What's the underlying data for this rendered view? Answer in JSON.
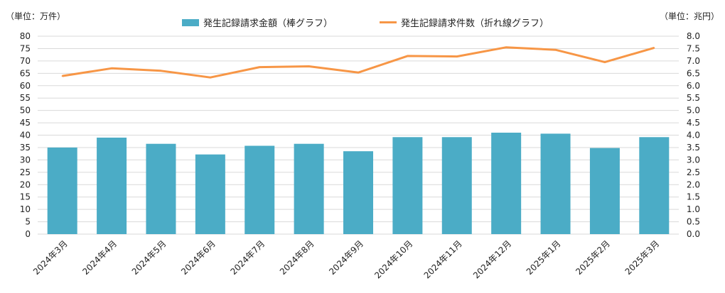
{
  "chart_data": {
    "type": "bar",
    "title": "",
    "y_unit_left": "（単位：万件）",
    "y_unit_right": "（単位：兆円）",
    "categories": [
      "2024年3月",
      "2024年4月",
      "2024年5月",
      "2024年6月",
      "2024年7月",
      "2024年8月",
      "2024年9月",
      "2024年10月",
      "2024年11月",
      "2024年12月",
      "2025年1月",
      "2025年2月",
      "2025年3月"
    ],
    "series": [
      {
        "name": "発生記録請求金額（棒グラフ）",
        "type": "bar",
        "axis": "right",
        "color": "#4BACC6",
        "values": [
          3.5,
          3.9,
          3.65,
          3.22,
          3.57,
          3.65,
          3.35,
          3.92,
          3.92,
          4.1,
          4.06,
          3.48,
          3.92
        ]
      },
      {
        "name": "発生記録請求件数（折れ線グラフ）",
        "type": "line",
        "axis": "left",
        "color": "#F79646",
        "values": [
          63.9,
          67.0,
          66.0,
          63.3,
          67.5,
          67.8,
          65.3,
          72.0,
          71.8,
          75.5,
          74.5,
          69.5,
          75.3
        ]
      }
    ],
    "y_left_ticks": [
      "0",
      "5",
      "10",
      "15",
      "20",
      "25",
      "30",
      "35",
      "40",
      "45",
      "50",
      "55",
      "60",
      "65",
      "70",
      "75",
      "80"
    ],
    "y_right_ticks": [
      "0.0",
      "0.5",
      "1.0",
      "1.5",
      "2.0",
      "2.5",
      "3.0",
      "3.5",
      "4.0",
      "4.5",
      "5.0",
      "5.5",
      "6.0",
      "6.5",
      "7.0",
      "7.5",
      "8.0"
    ],
    "y_left_range": [
      0,
      80
    ],
    "y_right_range": [
      0,
      8
    ],
    "grid": true,
    "legend_position": "top"
  }
}
